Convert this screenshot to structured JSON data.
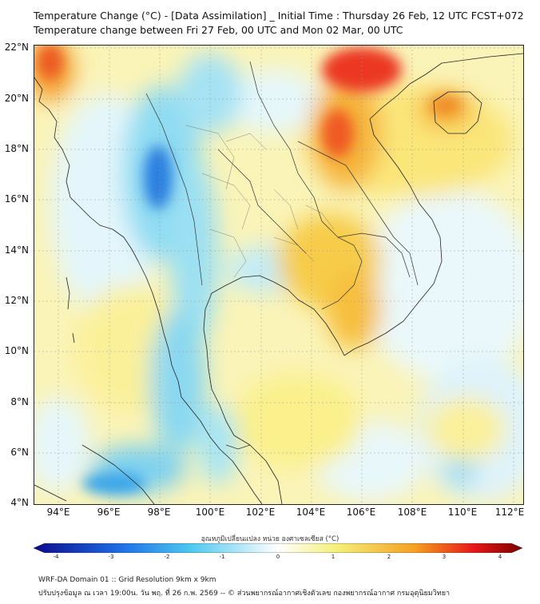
{
  "header": {
    "title_line1": "Temperature Change (°C) - [Data Assimilation] _ Initial Time : Thursday 26 Feb, 12 UTC FCST+072",
    "title_line2": "Temperature change between Fri 27 Feb, 00 UTC and Mon 02 Mar, 00 UTC"
  },
  "map": {
    "lat_labels": [
      "22°N",
      "20°N",
      "18°N",
      "16°N",
      "14°N",
      "12°N",
      "10°N",
      "8°N",
      "6°N",
      "4°N"
    ],
    "lon_labels": [
      "94°E",
      "96°E",
      "98°E",
      "100°E",
      "102°E",
      "104°E",
      "106°E",
      "108°E",
      "110°E",
      "112°E"
    ],
    "lat_range": [
      4,
      22.2
    ],
    "lon_range": [
      93,
      112.4
    ]
  },
  "colorbar": {
    "title": "อุณหภูมิเปลี่ยนแปลง หน่วย องศาเซลเซียส (°C)",
    "tick_labels": [
      "-4",
      "-3",
      "-2",
      "-1",
      "0",
      "1",
      "2",
      "3",
      "4"
    ],
    "range": [
      -4,
      4
    ],
    "colors": {
      "dark_blue": "#0a0a8c",
      "blue": "#1f6fe6",
      "cyan": "#4cc8f0",
      "white": "#ffffff",
      "yellow": "#f5f07a",
      "orange": "#f5a020",
      "red": "#e81818",
      "dark_red": "#7a0000"
    }
  },
  "footer": {
    "line1": "WRF-DA Domain 01 :: Grid Resolution 9km x 9km",
    "line2": "ปรับปรุงข้อมูล ณ เวลา 19:00น. วัน พฤ. ที่ 26 ก.พ. 2569 -- © ส่วนพยากรณ์อากาศเชิงตัวเลข กองพยากรณ์อากาศ กรมอุตุนิยมวิทยา"
  }
}
